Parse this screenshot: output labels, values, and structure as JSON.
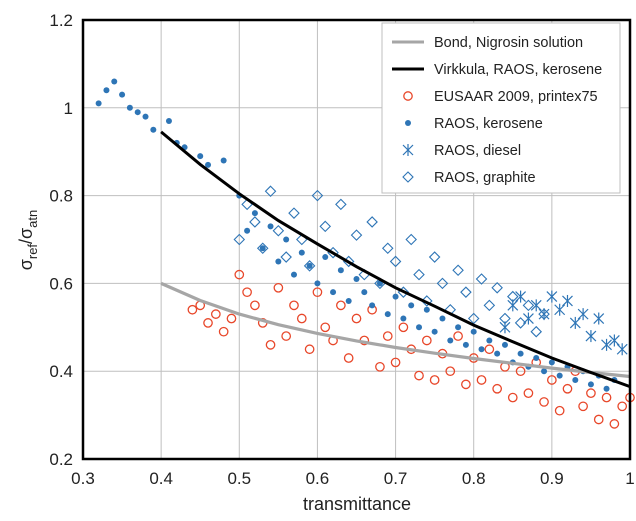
{
  "chart_data": {
    "type": "scatter",
    "xlabel": "transmittance",
    "ylabel": "σref/σatn",
    "ylabel_parts": {
      "sigma1": "σ",
      "sub1": "ref",
      "slash": "/",
      "sigma2": "σ",
      "sub2": "atn"
    },
    "xlim": [
      0.3,
      1.0
    ],
    "ylim": [
      0.2,
      1.2
    ],
    "x_ticks": [
      0.3,
      0.4,
      0.5,
      0.6,
      0.7,
      0.8,
      0.9,
      1.0
    ],
    "x_tick_labels": [
      "0.3",
      "0.4",
      "0.5",
      "0.6",
      "0.7",
      "0.8",
      "0.9",
      "1"
    ],
    "y_ticks": [
      0.2,
      0.4,
      0.6,
      0.8,
      1.0,
      1.2
    ],
    "y_tick_labels": [
      "0.2",
      "0.4",
      "0.6",
      "0.8",
      "1",
      "1.2"
    ],
    "grid": true,
    "legend_position": "top-right",
    "series": [
      {
        "name": "Bond, Nigrosin solution",
        "kind": "line",
        "color": "#a6a6a6",
        "points": [
          [
            0.4,
            0.6
          ],
          [
            0.45,
            0.561
          ],
          [
            0.5,
            0.53
          ],
          [
            0.55,
            0.506
          ],
          [
            0.6,
            0.486
          ],
          [
            0.65,
            0.469
          ],
          [
            0.7,
            0.454
          ],
          [
            0.75,
            0.441
          ],
          [
            0.8,
            0.429
          ],
          [
            0.85,
            0.418
          ],
          [
            0.9,
            0.407
          ],
          [
            0.95,
            0.397
          ],
          [
            1.0,
            0.388
          ]
        ]
      },
      {
        "name": "Virkkula, RAOS, kerosene",
        "kind": "line",
        "color": "#000000",
        "points": [
          [
            0.4,
            0.945
          ],
          [
            0.45,
            0.871
          ],
          [
            0.5,
            0.804
          ],
          [
            0.55,
            0.743
          ],
          [
            0.6,
            0.69
          ],
          [
            0.65,
            0.638
          ],
          [
            0.7,
            0.59
          ],
          [
            0.75,
            0.548
          ],
          [
            0.8,
            0.505
          ],
          [
            0.85,
            0.467
          ],
          [
            0.9,
            0.43
          ],
          [
            0.95,
            0.397
          ],
          [
            1.0,
            0.365
          ]
        ]
      },
      {
        "name": "EUSAAR 2009, printex75",
        "kind": "open-circle",
        "color": "#e8472a",
        "points": [
          [
            0.44,
            0.54
          ],
          [
            0.45,
            0.55
          ],
          [
            0.46,
            0.51
          ],
          [
            0.47,
            0.53
          ],
          [
            0.48,
            0.49
          ],
          [
            0.49,
            0.52
          ],
          [
            0.5,
            0.62
          ],
          [
            0.51,
            0.58
          ],
          [
            0.52,
            0.55
          ],
          [
            0.53,
            0.51
          ],
          [
            0.54,
            0.46
          ],
          [
            0.55,
            0.59
          ],
          [
            0.56,
            0.48
          ],
          [
            0.57,
            0.55
          ],
          [
            0.58,
            0.52
          ],
          [
            0.59,
            0.45
          ],
          [
            0.6,
            0.58
          ],
          [
            0.61,
            0.5
          ],
          [
            0.62,
            0.47
          ],
          [
            0.63,
            0.55
          ],
          [
            0.64,
            0.43
          ],
          [
            0.65,
            0.52
          ],
          [
            0.66,
            0.47
          ],
          [
            0.67,
            0.54
          ],
          [
            0.68,
            0.41
          ],
          [
            0.69,
            0.48
          ],
          [
            0.7,
            0.42
          ],
          [
            0.71,
            0.5
          ],
          [
            0.72,
            0.45
          ],
          [
            0.73,
            0.39
          ],
          [
            0.74,
            0.47
          ],
          [
            0.75,
            0.38
          ],
          [
            0.76,
            0.44
          ],
          [
            0.77,
            0.4
          ],
          [
            0.78,
            0.48
          ],
          [
            0.79,
            0.37
          ],
          [
            0.8,
            0.43
          ],
          [
            0.81,
            0.38
          ],
          [
            0.82,
            0.45
          ],
          [
            0.83,
            0.36
          ],
          [
            0.84,
            0.41
          ],
          [
            0.85,
            0.34
          ],
          [
            0.86,
            0.4
          ],
          [
            0.87,
            0.35
          ],
          [
            0.88,
            0.42
          ],
          [
            0.89,
            0.33
          ],
          [
            0.9,
            0.38
          ],
          [
            0.91,
            0.31
          ],
          [
            0.92,
            0.36
          ],
          [
            0.93,
            0.4
          ],
          [
            0.94,
            0.32
          ],
          [
            0.95,
            0.35
          ],
          [
            0.96,
            0.29
          ],
          [
            0.97,
            0.34
          ],
          [
            0.98,
            0.28
          ],
          [
            0.99,
            0.32
          ],
          [
            1.0,
            0.34
          ]
        ]
      },
      {
        "name": "RAOS, kerosene",
        "kind": "filled-circle",
        "color": "#2e75b6",
        "points": [
          [
            0.32,
            1.01
          ],
          [
            0.33,
            1.04
          ],
          [
            0.34,
            1.06
          ],
          [
            0.35,
            1.03
          ],
          [
            0.36,
            1.0
          ],
          [
            0.37,
            0.99
          ],
          [
            0.38,
            0.98
          ],
          [
            0.39,
            0.95
          ],
          [
            0.41,
            0.97
          ],
          [
            0.42,
            0.92
          ],
          [
            0.43,
            0.91
          ],
          [
            0.45,
            0.89
          ],
          [
            0.46,
            0.87
          ],
          [
            0.48,
            0.88
          ],
          [
            0.5,
            0.8
          ],
          [
            0.51,
            0.72
          ],
          [
            0.52,
            0.76
          ],
          [
            0.53,
            0.68
          ],
          [
            0.54,
            0.73
          ],
          [
            0.55,
            0.65
          ],
          [
            0.56,
            0.7
          ],
          [
            0.57,
            0.62
          ],
          [
            0.58,
            0.67
          ],
          [
            0.59,
            0.64
          ],
          [
            0.6,
            0.6
          ],
          [
            0.61,
            0.66
          ],
          [
            0.62,
            0.58
          ],
          [
            0.63,
            0.63
          ],
          [
            0.64,
            0.56
          ],
          [
            0.65,
            0.61
          ],
          [
            0.66,
            0.58
          ],
          [
            0.67,
            0.55
          ],
          [
            0.68,
            0.6
          ],
          [
            0.69,
            0.53
          ],
          [
            0.7,
            0.57
          ],
          [
            0.71,
            0.52
          ],
          [
            0.72,
            0.55
          ],
          [
            0.73,
            0.5
          ],
          [
            0.74,
            0.54
          ],
          [
            0.75,
            0.49
          ],
          [
            0.76,
            0.52
          ],
          [
            0.77,
            0.47
          ],
          [
            0.78,
            0.5
          ],
          [
            0.79,
            0.46
          ],
          [
            0.8,
            0.49
          ],
          [
            0.81,
            0.45
          ],
          [
            0.82,
            0.47
          ],
          [
            0.83,
            0.44
          ],
          [
            0.84,
            0.46
          ],
          [
            0.85,
            0.42
          ],
          [
            0.86,
            0.44
          ],
          [
            0.87,
            0.41
          ],
          [
            0.88,
            0.43
          ],
          [
            0.89,
            0.4
          ],
          [
            0.9,
            0.42
          ],
          [
            0.91,
            0.39
          ],
          [
            0.92,
            0.41
          ],
          [
            0.93,
            0.38
          ],
          [
            0.94,
            0.4
          ],
          [
            0.95,
            0.37
          ],
          [
            0.96,
            0.39
          ],
          [
            0.97,
            0.36
          ],
          [
            0.98,
            0.38
          ]
        ]
      },
      {
        "name": "RAOS, diesel",
        "kind": "asterisk",
        "color": "#2e75b6",
        "points": [
          [
            0.84,
            0.5
          ],
          [
            0.85,
            0.55
          ],
          [
            0.86,
            0.57
          ],
          [
            0.87,
            0.52
          ],
          [
            0.88,
            0.55
          ],
          [
            0.89,
            0.53
          ],
          [
            0.9,
            0.57
          ],
          [
            0.91,
            0.54
          ],
          [
            0.92,
            0.56
          ],
          [
            0.93,
            0.51
          ],
          [
            0.94,
            0.53
          ],
          [
            0.95,
            0.48
          ],
          [
            0.96,
            0.52
          ],
          [
            0.97,
            0.46
          ],
          [
            0.98,
            0.47
          ],
          [
            0.99,
            0.45
          ]
        ]
      },
      {
        "name": "RAOS, graphite",
        "kind": "open-diamond",
        "color": "#2e75b6",
        "points": [
          [
            0.5,
            0.7
          ],
          [
            0.51,
            0.78
          ],
          [
            0.52,
            0.74
          ],
          [
            0.53,
            0.68
          ],
          [
            0.54,
            0.81
          ],
          [
            0.55,
            0.72
          ],
          [
            0.56,
            0.66
          ],
          [
            0.57,
            0.76
          ],
          [
            0.58,
            0.7
          ],
          [
            0.59,
            0.64
          ],
          [
            0.6,
            0.8
          ],
          [
            0.61,
            0.73
          ],
          [
            0.62,
            0.67
          ],
          [
            0.63,
            0.78
          ],
          [
            0.64,
            0.65
          ],
          [
            0.65,
            0.71
          ],
          [
            0.66,
            0.62
          ],
          [
            0.67,
            0.74
          ],
          [
            0.68,
            0.6
          ],
          [
            0.69,
            0.68
          ],
          [
            0.7,
            0.65
          ],
          [
            0.71,
            0.58
          ],
          [
            0.72,
            0.7
          ],
          [
            0.73,
            0.62
          ],
          [
            0.74,
            0.56
          ],
          [
            0.75,
            0.66
          ],
          [
            0.76,
            0.6
          ],
          [
            0.77,
            0.54
          ],
          [
            0.78,
            0.63
          ],
          [
            0.79,
            0.58
          ],
          [
            0.8,
            0.52
          ],
          [
            0.81,
            0.61
          ],
          [
            0.82,
            0.55
          ],
          [
            0.83,
            0.59
          ],
          [
            0.84,
            0.52
          ],
          [
            0.85,
            0.57
          ],
          [
            0.86,
            0.51
          ],
          [
            0.87,
            0.55
          ],
          [
            0.88,
            0.49
          ],
          [
            0.89,
            0.53
          ]
        ]
      }
    ]
  }
}
